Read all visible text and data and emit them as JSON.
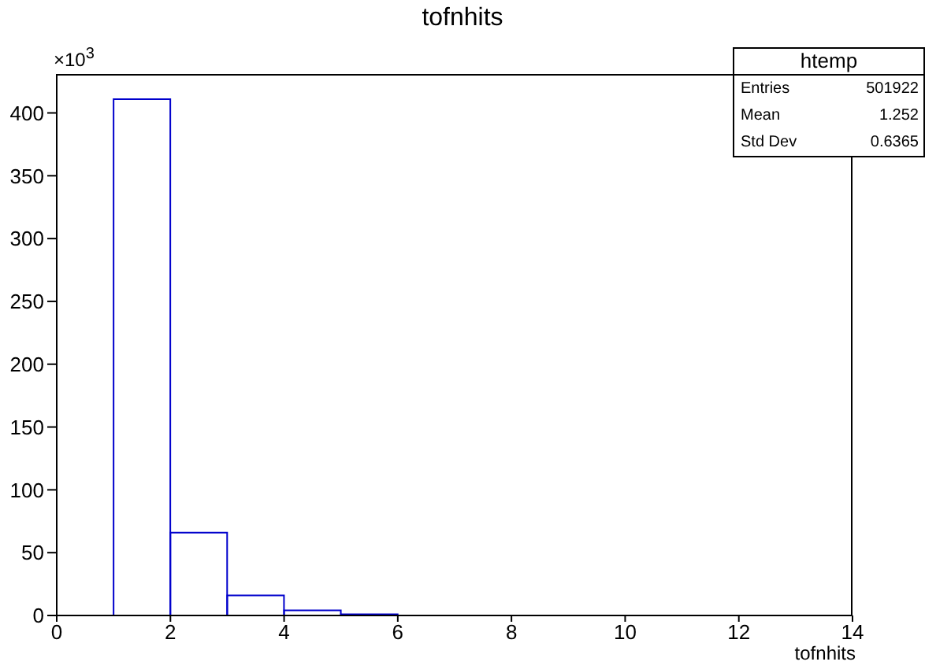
{
  "chart_data": {
    "type": "histogram",
    "title": "tofnhits",
    "xlabel": "tofnhits",
    "bins": [
      0,
      1,
      2,
      3,
      4,
      5,
      6,
      7,
      8,
      9,
      10,
      11,
      12,
      13,
      14
    ],
    "values": [
      0,
      411,
      66,
      16,
      4,
      1,
      0,
      0,
      0,
      0,
      0,
      0,
      0,
      0
    ],
    "color": "#0000cc",
    "xlim": [
      0,
      14
    ],
    "xticks": [
      0,
      2,
      4,
      6,
      8,
      10,
      12,
      14
    ],
    "ylim": [
      0,
      431
    ],
    "yticks": [
      0,
      50,
      100,
      150,
      200,
      250,
      300,
      350,
      400
    ],
    "annotations": [
      "×10$^{3}$",
      "htemp",
      "Entries",
      "501922",
      "Mean",
      "1.252",
      "Std Dev",
      "0.6365"
    ]
  }
}
